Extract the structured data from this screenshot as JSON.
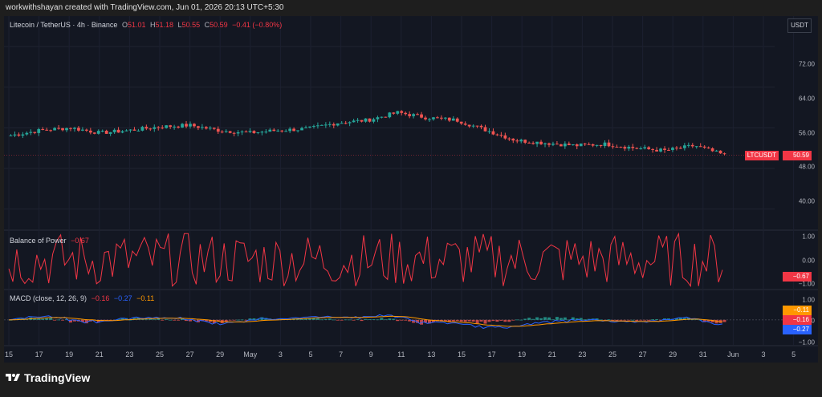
{
  "attribution": "workwithshayan created with TradingView.com, Jun 01, 2026 20:13 UTC+5:30",
  "header": {
    "symbol": "Litecoin / TetherUS · 4h · Binance",
    "open_label": "O",
    "open": "51.01",
    "high_label": "H",
    "high": "51.18",
    "low_label": "L",
    "low": "50.55",
    "close_label": "C",
    "close": "50.59",
    "change": "−0.41 (−0.80%)"
  },
  "currency_button": "USDT",
  "price_axis": {
    "ticks": [
      "72.00",
      "64.00",
      "56.00",
      "48.00",
      "40.00"
    ],
    "values": [
      72,
      64,
      56,
      48,
      40
    ]
  },
  "last_price_badge": {
    "label": "LTCUSDT",
    "value": "50.59",
    "price": 50.59,
    "color": "#f23645"
  },
  "bop": {
    "title": "Balance of Power",
    "value": "−0.67",
    "ticks": [
      "1.00",
      "0.00",
      "−1.00"
    ],
    "badge": "−0.67",
    "color": "#f23645"
  },
  "macd": {
    "title": "MACD (close, 12, 26, 9)",
    "v1": "−0.16",
    "v2": "−0.27",
    "v3": "−0.11",
    "ticks": [
      "1.00",
      "0.00",
      "−1.00"
    ],
    "badges": [
      {
        "value": "−0.11",
        "color": "#ff9800"
      },
      {
        "value": "−0.16",
        "color": "#f23645"
      },
      {
        "value": "−0.27",
        "color": "#2962ff"
      }
    ]
  },
  "time_axis": [
    "15",
    "17",
    "19",
    "21",
    "23",
    "25",
    "27",
    "29",
    "May",
    "3",
    "5",
    "7",
    "9",
    "11",
    "13",
    "15",
    "17",
    "19",
    "21",
    "23",
    "25",
    "27",
    "29",
    "31",
    "Jun",
    "3",
    "5"
  ],
  "footer": {
    "brand": "TradingView"
  },
  "colors": {
    "up": "#26a69a",
    "down": "#ef5350",
    "macd": "#2962ff",
    "signal": "#ff9800",
    "bop": "#f23645"
  },
  "chart_data": {
    "type": "candlestick",
    "price_series": {
      "name": "LTCUSDT",
      "x": [
        "15",
        "17",
        "19",
        "21",
        "23",
        "25",
        "27",
        "29",
        "May",
        "3",
        "5",
        "7",
        "9",
        "11",
        "13",
        "15",
        "17",
        "19",
        "21",
        "23",
        "25",
        "27",
        "29",
        "31",
        "Jun"
      ],
      "close": [
        54.5,
        55.5,
        56.0,
        55.0,
        55.5,
        56.2,
        56.5,
        55.5,
        55.0,
        55.5,
        55.8,
        57.0,
        57.5,
        59.0,
        58.0,
        57.5,
        55.5,
        53.5,
        53.0,
        52.5,
        52.8,
        52.0,
        51.5,
        52.5,
        50.6
      ],
      "ylim": [
        36,
        78
      ]
    },
    "bop_ylim": [
      -1.1,
      1.1
    ],
    "macd_ylim": [
      -1.1,
      1.3
    ]
  }
}
